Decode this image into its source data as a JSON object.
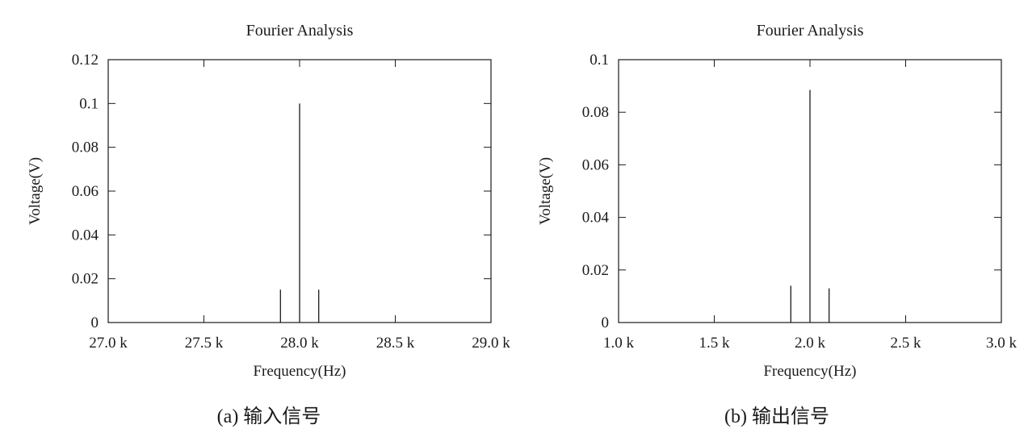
{
  "chart_data": [
    {
      "type": "bar",
      "title": "Fourier Analysis",
      "xlabel": "Frequency(Hz)",
      "ylabel": "Voltage(V)",
      "caption": "(a) 输入信号",
      "xlim": [
        27000,
        29000
      ],
      "ylim": [
        0,
        0.12
      ],
      "xticks": [
        {
          "value": 27000,
          "label": "27.0 k"
        },
        {
          "value": 27500,
          "label": "27.5 k"
        },
        {
          "value": 28000,
          "label": "28.0 k"
        },
        {
          "value": 28500,
          "label": "28.5 k"
        },
        {
          "value": 29000,
          "label": "29.0 k"
        }
      ],
      "yticks": [
        {
          "value": 0,
          "label": "0"
        },
        {
          "value": 0.02,
          "label": "0.02"
        },
        {
          "value": 0.04,
          "label": "0.04"
        },
        {
          "value": 0.06,
          "label": "0.06"
        },
        {
          "value": 0.08,
          "label": "0.08"
        },
        {
          "value": 0.1,
          "label": "0.1"
        },
        {
          "value": 0.12,
          "label": "0.12"
        }
      ],
      "points": [
        {
          "x": 27900,
          "y": 0.015
        },
        {
          "x": 28000,
          "y": 0.1
        },
        {
          "x": 28100,
          "y": 0.015
        }
      ],
      "grid": false
    },
    {
      "type": "bar",
      "title": "Fourier Analysis",
      "xlabel": "Frequency(Hz)",
      "ylabel": "Voltage(V)",
      "caption": "(b) 输出信号",
      "xlim": [
        1000,
        3000
      ],
      "ylim": [
        0,
        0.1
      ],
      "xticks": [
        {
          "value": 1000,
          "label": "1.0 k"
        },
        {
          "value": 1500,
          "label": "1.5 k"
        },
        {
          "value": 2000,
          "label": "2.0 k"
        },
        {
          "value": 2500,
          "label": "2.5 k"
        },
        {
          "value": 3000,
          "label": "3.0 k"
        }
      ],
      "yticks": [
        {
          "value": 0,
          "label": "0"
        },
        {
          "value": 0.02,
          "label": "0.02"
        },
        {
          "value": 0.04,
          "label": "0.04"
        },
        {
          "value": 0.06,
          "label": "0.06"
        },
        {
          "value": 0.08,
          "label": "0.08"
        },
        {
          "value": 0.1,
          "label": "0.1"
        }
      ],
      "points": [
        {
          "x": 1900,
          "y": 0.014
        },
        {
          "x": 2000,
          "y": 0.0885
        },
        {
          "x": 2100,
          "y": 0.013
        }
      ],
      "grid": false
    }
  ]
}
